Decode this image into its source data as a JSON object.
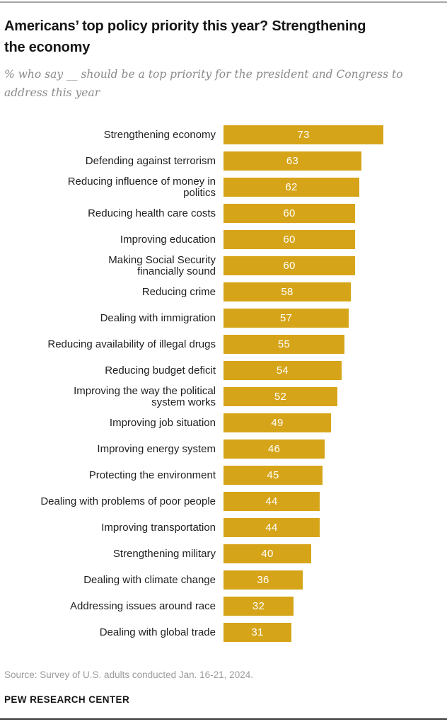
{
  "header": {
    "title": "Americans’ top policy priority this year? Strengthening\nthe economy",
    "subtitle": "% who say __ should be a top priority for the president and Congress to\naddress this year"
  },
  "chart_data": {
    "type": "bar",
    "orientation": "horizontal",
    "title": "Americans’ top policy priority this year? Strengthening the economy",
    "subtitle": "% who say __ should be a top priority for the president and Congress to address this year",
    "xlim": [
      0,
      100
    ],
    "grid": false,
    "legend": false,
    "bar_color": "#d6a418",
    "value_label_color": "#ffffff",
    "categories": [
      "Strengthening economy",
      "Defending against terrorism",
      "Reducing influence of money in\npolitics",
      "Reducing health care costs",
      "Improving education",
      "Making Social Security\nfinancially sound",
      "Reducing crime",
      "Dealing with immigration",
      "Reducing availability of illegal drugs",
      "Reducing budget deficit",
      "Improving the way the political\nsystem works",
      "Improving job situation",
      "Improving energy system",
      "Protecting the environment",
      "Dealing with problems of poor people",
      "Improving transportation",
      "Strengthening military",
      "Dealing with climate change",
      "Addressing issues around race",
      "Dealing with global trade"
    ],
    "values": [
      73,
      63,
      62,
      60,
      60,
      60,
      58,
      57,
      55,
      54,
      52,
      49,
      46,
      45,
      44,
      44,
      40,
      36,
      32,
      31
    ]
  },
  "footer": {
    "source": "Source: Survey of U.S. adults conducted Jan. 16-21, 2024.",
    "brand": "PEW RESEARCH CENTER"
  }
}
